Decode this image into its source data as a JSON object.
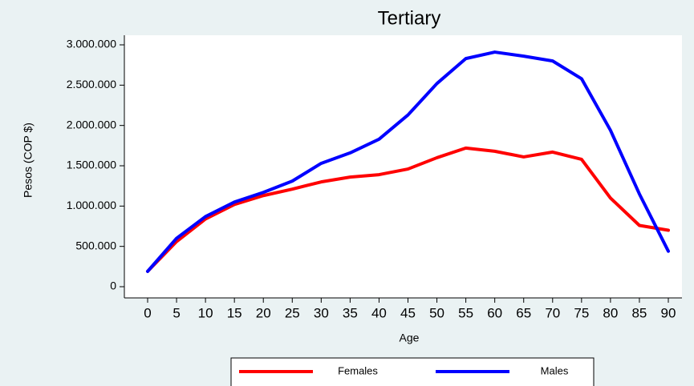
{
  "chart_data": {
    "type": "line",
    "title": "Tertiary",
    "x_label": "Age",
    "y_label": "Pesos (COP $)",
    "x": [
      0,
      5,
      10,
      15,
      20,
      25,
      30,
      35,
      40,
      45,
      50,
      55,
      60,
      65,
      70,
      75,
      80,
      85,
      90
    ],
    "series": [
      {
        "name": "Females",
        "color": "#ff0000",
        "values": [
          190000,
          560000,
          840000,
          1020000,
          1130000,
          1210000,
          1300000,
          1360000,
          1390000,
          1460000,
          1600000,
          1720000,
          1680000,
          1610000,
          1670000,
          1580000,
          1100000,
          760000,
          700000
        ]
      },
      {
        "name": "Males",
        "color": "#0000ff",
        "values": [
          190000,
          600000,
          870000,
          1050000,
          1170000,
          1310000,
          1530000,
          1660000,
          1830000,
          2130000,
          2520000,
          2830000,
          2910000,
          2860000,
          2800000,
          2580000,
          1940000,
          1150000,
          440000
        ]
      }
    ],
    "xlim": [
      0,
      90
    ],
    "xticks": [
      0,
      5,
      10,
      15,
      20,
      25,
      30,
      35,
      40,
      45,
      50,
      55,
      60,
      65,
      70,
      75,
      80,
      85,
      90
    ],
    "ylim": [
      0,
      3000000
    ],
    "yticks": [
      {
        "value": 0,
        "label": "0"
      },
      {
        "value": 500000,
        "label": "500.000"
      },
      {
        "value": 1000000,
        "label": "1.000.000"
      },
      {
        "value": 1500000,
        "label": "1.500.000"
      },
      {
        "value": 2000000,
        "label": "2.000.000"
      },
      {
        "value": 2500000,
        "label": "2.500.000"
      },
      {
        "value": 3000000,
        "label": "3.000.000"
      }
    ],
    "legend": "bottom"
  }
}
